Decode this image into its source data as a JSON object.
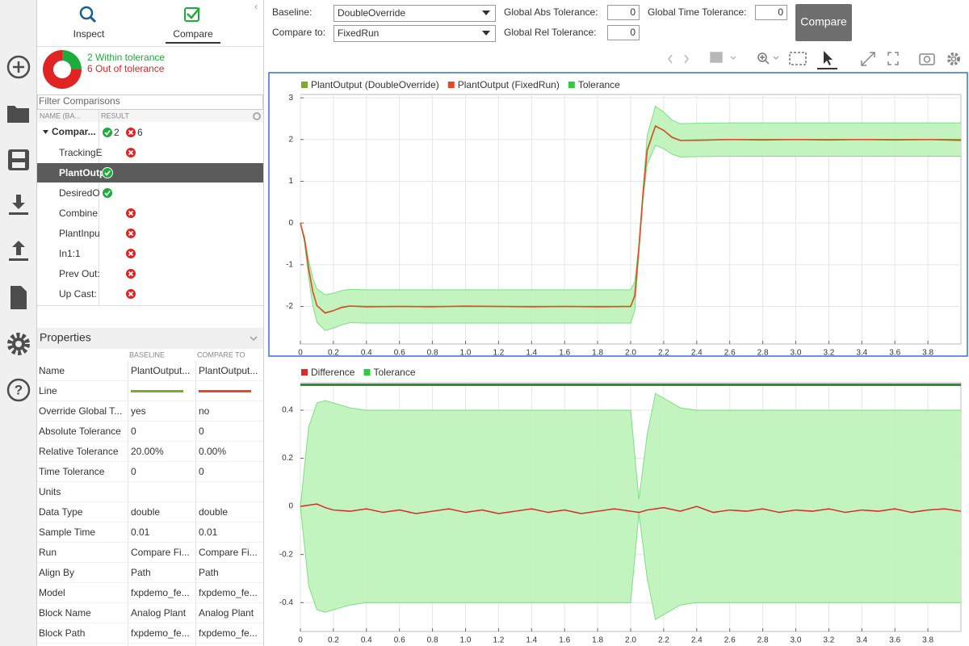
{
  "toolbar": {
    "baseline_label": "Baseline:",
    "baseline_value": "DoubleOverride",
    "compare_label": "Compare to:",
    "compare_value": "FixedRun",
    "abs_label": "Global Abs Tolerance:",
    "abs_value": 0,
    "rel_label": "Global Rel Tolerance:",
    "rel_value": 0,
    "time_label": "Global Time Tolerance:",
    "time_value": 0,
    "button": "Compare"
  },
  "tabs": [
    "Inspect",
    "Compare"
  ],
  "summary": {
    "within_text": "2 Within tolerance",
    "out_text": "6 Out of tolerance",
    "segments": [
      {
        "value": 2,
        "color": "#1faa3c"
      },
      {
        "value": 6,
        "color": "#e02424"
      }
    ]
  },
  "filter_placeholder": "Filter Comparisons",
  "tree": {
    "header": [
      "NAME (BA...",
      "RESULT"
    ],
    "root": {
      "name": "Compar...",
      "passed": 2,
      "failed": 6
    },
    "selected": 1,
    "rows": [
      {
        "name": "TrackingE",
        "result": "fail"
      },
      {
        "name": "PlantOutp",
        "result": "pass"
      },
      {
        "name": "DesiredO",
        "result": "pass"
      },
      {
        "name": "Combine",
        "result": "fail"
      },
      {
        "name": "PlantInpu",
        "result": "fail"
      },
      {
        "name": "In1:1",
        "result": "fail"
      },
      {
        "name": "Prev Out:",
        "result": "fail"
      },
      {
        "name": "Up Cast:",
        "result": "fail"
      }
    ]
  },
  "properties": {
    "title": "Properties",
    "columns": [
      "BASELINE",
      "COMPARE TO"
    ],
    "rows": [
      {
        "label": "Name",
        "baseline": "PlantOutput...",
        "compare": "PlantOutput..."
      },
      {
        "label": "Line",
        "baseline_color": "#77ac30",
        "compare_color": "#e8472a"
      },
      {
        "label": "Override Global T...",
        "baseline": "yes",
        "compare": "no"
      },
      {
        "label": "Absolute Tolerance",
        "baseline": "0",
        "compare": "0"
      },
      {
        "label": "Relative Tolerance",
        "baseline": "20.00%",
        "compare": "0.00%"
      },
      {
        "label": "Time Tolerance",
        "baseline": "0",
        "compare": "0"
      },
      {
        "label": "Units"
      },
      {
        "label": "Data Type",
        "baseline": "double",
        "compare": "double"
      },
      {
        "label": "Sample Time",
        "baseline": "0.01",
        "compare": "0.01"
      },
      {
        "label": "Run",
        "baseline": "Compare Fi...",
        "compare": "Compare Fi..."
      },
      {
        "label": "Align By",
        "baseline": "Path",
        "compare": "Path"
      },
      {
        "label": "Model",
        "baseline": "fxpdemo_fe...",
        "compare": "fxpdemo_fe..."
      },
      {
        "label": "Block Name",
        "baseline": "Analog Plant",
        "compare": "Analog Plant"
      },
      {
        "label": "Block Path",
        "baseline": "fxpdemo_fe...",
        "compare": "fxpdemo_fe..."
      }
    ]
  },
  "chart_data": [
    {
      "type": "line",
      "grid": true,
      "x": [
        0,
        0.025,
        0.05,
        0.075,
        0.1,
        0.15,
        0.2,
        0.25,
        0.3,
        0.4,
        0.6,
        0.8,
        1.0,
        1.2,
        1.4,
        1.6,
        1.8,
        2.0,
        2.025,
        2.05,
        2.075,
        2.1,
        2.15,
        2.2,
        2.25,
        2.3,
        2.4,
        2.6,
        2.8,
        3.0,
        3.2,
        3.4,
        3.6,
        3.8,
        4.0
      ],
      "xlim": [
        0,
        4
      ],
      "xticks": [
        0,
        0.2,
        0.4,
        0.6,
        0.8,
        {
          "value": 1,
          "label": "1.0"
        },
        1.2,
        1.4,
        1.6,
        1.8,
        {
          "value": 2,
          "label": "2.0"
        },
        2.2,
        2.4,
        2.6,
        2.8,
        {
          "value": 3,
          "label": "3.0"
        },
        3.2,
        3.4,
        3.6,
        3.8
      ],
      "ylim": [
        -2.9,
        3.08
      ],
      "yticks": [
        -2,
        -1,
        0,
        1,
        2,
        3
      ],
      "series": [
        {
          "name": "PlantOutput (DoubleOverride)",
          "color": "#77ac30",
          "values": [
            0,
            -0.4,
            -1.1,
            -1.65,
            -1.98,
            -2.15,
            -2.1,
            -2.03,
            -1.99,
            -2.0,
            -2.0,
            -2.0,
            -2.0,
            -2.0,
            -2.0,
            -2.0,
            -2.0,
            -2.0,
            -1.75,
            -0.6,
            0.7,
            1.75,
            2.33,
            2.22,
            2.06,
            1.98,
            1.99,
            2.0,
            2.0,
            2.0,
            2.0,
            2.0,
            2.0,
            2.0,
            2.0
          ]
        },
        {
          "name": "PlantOutput (FixedRun)",
          "color": "#e8472a",
          "values": [
            0,
            -0.39,
            -1.09,
            -1.64,
            -1.98,
            -2.16,
            -2.1,
            -2.02,
            -1.99,
            -2.01,
            -2.0,
            -2.01,
            -1.99,
            -2.0,
            -2.01,
            -2.0,
            -2.01,
            -2.0,
            -1.74,
            -0.6,
            0.7,
            1.74,
            2.32,
            2.22,
            2.05,
            1.98,
            1.98,
            2.0,
            1.99,
            2.0,
            1.99,
            2.0,
            1.99,
            2.0,
            1.98
          ]
        },
        {
          "name": "Tolerance",
          "color": "#2ecc40",
          "fill": "#bdf2b8",
          "upper": [
            0,
            -0.32,
            -0.88,
            -1.32,
            -1.58,
            -1.72,
            -1.68,
            -1.62,
            -1.59,
            -1.6,
            -1.6,
            -1.6,
            -1.6,
            -1.6,
            -1.6,
            -1.6,
            -1.6,
            -1.6,
            -1.4,
            -0.48,
            0.84,
            2.1,
            2.8,
            2.66,
            2.47,
            2.38,
            2.39,
            2.4,
            2.4,
            2.4,
            2.4,
            2.4,
            2.4,
            2.4,
            2.4
          ],
          "lower": [
            0,
            -0.48,
            -1.32,
            -1.98,
            -2.38,
            -2.58,
            -2.52,
            -2.44,
            -2.39,
            -2.4,
            -2.4,
            -2.4,
            -2.4,
            -2.4,
            -2.4,
            -2.4,
            -2.4,
            -2.4,
            -2.1,
            -0.72,
            0.56,
            1.4,
            1.86,
            1.78,
            1.65,
            1.58,
            1.59,
            1.6,
            1.6,
            1.6,
            1.6,
            1.6,
            1.6,
            1.6,
            1.6
          ]
        }
      ]
    },
    {
      "type": "line",
      "grid": true,
      "x": [
        0,
        0.05,
        0.1,
        0.15,
        0.2,
        0.3,
        0.4,
        0.5,
        0.6,
        0.7,
        0.8,
        0.9,
        1.0,
        1.1,
        1.2,
        1.3,
        1.4,
        1.5,
        1.6,
        1.7,
        1.8,
        1.9,
        2.0,
        2.05,
        2.1,
        2.15,
        2.2,
        2.3,
        2.4,
        2.5,
        2.6,
        2.7,
        2.8,
        2.9,
        3.0,
        3.1,
        3.2,
        3.3,
        3.4,
        3.5,
        3.6,
        3.7,
        3.8,
        3.9,
        4.0
      ],
      "xlim": [
        0,
        4
      ],
      "xticks": [
        0,
        0.2,
        0.4,
        0.6,
        0.8,
        {
          "value": 1,
          "label": "1.0"
        },
        1.2,
        1.4,
        1.6,
        1.8,
        {
          "value": 2,
          "label": "2.0"
        },
        2.2,
        2.4,
        2.6,
        2.8,
        {
          "value": 3,
          "label": "3.0"
        },
        3.2,
        3.4,
        3.6,
        3.8
      ],
      "ylim": [
        -0.52,
        0.514
      ],
      "yticks": [
        -0.4,
        -0.2,
        0,
        0.2,
        0.4
      ],
      "series": [
        {
          "name": "Difference",
          "color": "#d92b2b",
          "values": [
            0,
            0.005,
            0.01,
            -0.005,
            -0.015,
            -0.02,
            -0.01,
            -0.025,
            -0.015,
            -0.03,
            -0.02,
            -0.01,
            -0.025,
            -0.015,
            -0.03,
            -0.02,
            -0.01,
            -0.025,
            -0.015,
            -0.03,
            -0.02,
            -0.01,
            -0.02,
            -0.025,
            -0.015,
            -0.01,
            -0.005,
            -0.02,
            0,
            -0.025,
            -0.015,
            -0.02,
            -0.01,
            -0.025,
            -0.015,
            -0.02,
            -0.01,
            -0.025,
            -0.015,
            -0.02,
            -0.01,
            -0.025,
            -0.015,
            -0.01,
            -0.02
          ]
        },
        {
          "name": "Tolerance",
          "color": "#2ecc40",
          "fill": "#bdf2b8",
          "upper": [
            0,
            0.33,
            0.43,
            0.44,
            0.43,
            0.41,
            0.4,
            0.4,
            0.4,
            0.4,
            0.4,
            0.4,
            0.4,
            0.4,
            0.4,
            0.4,
            0.4,
            0.4,
            0.4,
            0.4,
            0.4,
            0.4,
            0.4,
            0.03,
            0.3,
            0.47,
            0.45,
            0.41,
            0.4,
            0.4,
            0.4,
            0.4,
            0.4,
            0.4,
            0.4,
            0.4,
            0.4,
            0.4,
            0.4,
            0.4,
            0.4,
            0.4,
            0.4,
            0.4,
            0.4
          ],
          "lower": [
            0,
            -0.33,
            -0.43,
            -0.44,
            -0.43,
            -0.41,
            -0.4,
            -0.4,
            -0.4,
            -0.4,
            -0.4,
            -0.4,
            -0.4,
            -0.4,
            -0.4,
            -0.4,
            -0.4,
            -0.4,
            -0.4,
            -0.4,
            -0.4,
            -0.4,
            -0.4,
            -0.03,
            -0.3,
            -0.47,
            -0.45,
            -0.41,
            -0.4,
            -0.4,
            -0.4,
            -0.4,
            -0.4,
            -0.4,
            -0.4,
            -0.4,
            -0.4,
            -0.4,
            -0.4,
            -0.4,
            -0.4,
            -0.4,
            -0.4,
            -0.4,
            -0.4
          ]
        }
      ]
    }
  ]
}
